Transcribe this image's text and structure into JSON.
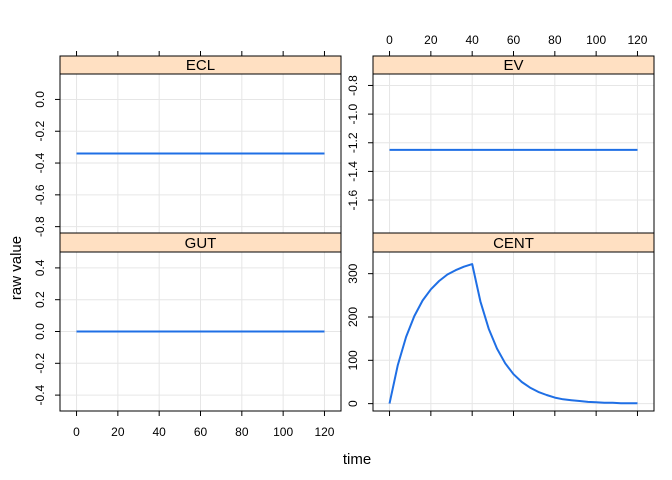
{
  "chart_data": {
    "type": "line",
    "layout": "lattice 2x2 panels, shared x axis, free y axes",
    "xlabel": "time",
    "ylabel": "raw value",
    "xlim": [
      -8,
      128
    ],
    "x_ticks": [
      0,
      20,
      40,
      60,
      80,
      100,
      120
    ],
    "grid": true,
    "line_color": "#1f6fe5",
    "strip_color": "#ffe0c2",
    "panels": [
      {
        "name": "ECL",
        "ylim": [
          -0.84,
          0.16
        ],
        "y_ticks": [
          -0.8,
          -0.6,
          -0.4,
          -0.2,
          0.0
        ],
        "y_tick_labels": [
          "-0.8",
          "-0.6",
          "-0.4",
          "-0.2",
          "0.0"
        ],
        "x": [
          0,
          120
        ],
        "y": [
          -0.34,
          -0.34
        ]
      },
      {
        "name": "EV",
        "ylim": [
          -1.83,
          -0.72
        ],
        "y_ticks": [
          -1.6,
          -1.4,
          -1.2,
          -1.0,
          -0.8
        ],
        "y_tick_labels": [
          "-1.6",
          "-1.4",
          "-1.2",
          "-1.0",
          "-0.8"
        ],
        "x": [
          0,
          120
        ],
        "y": [
          -1.25,
          -1.25
        ]
      },
      {
        "name": "GUT",
        "ylim": [
          -0.5,
          0.5
        ],
        "y_ticks": [
          -0.4,
          -0.2,
          0.0,
          0.2,
          0.4
        ],
        "y_tick_labels": [
          "-0.4",
          "-0.2",
          "0.0",
          "0.2",
          "0.4"
        ],
        "x": [
          0,
          120
        ],
        "y": [
          0,
          0
        ]
      },
      {
        "name": "CENT",
        "ylim": [
          -17,
          350
        ],
        "y_ticks": [
          0,
          100,
          200,
          300
        ],
        "y_tick_labels": [
          "0",
          "100",
          "200",
          "300"
        ],
        "x": [
          0,
          4,
          8,
          12,
          16,
          20,
          24,
          28,
          32,
          36,
          40,
          44,
          48,
          52,
          56,
          60,
          64,
          68,
          72,
          76,
          80,
          84,
          88,
          92,
          96,
          100,
          104,
          108,
          112,
          116,
          120
        ],
        "y": [
          0,
          89,
          154,
          202,
          238,
          264,
          283,
          298,
          308,
          316,
          322,
          236,
          173,
          127,
          93,
          68,
          50,
          37,
          27,
          20,
          14,
          10,
          8,
          6,
          4,
          3,
          2,
          2,
          1,
          1,
          1
        ]
      }
    ]
  }
}
